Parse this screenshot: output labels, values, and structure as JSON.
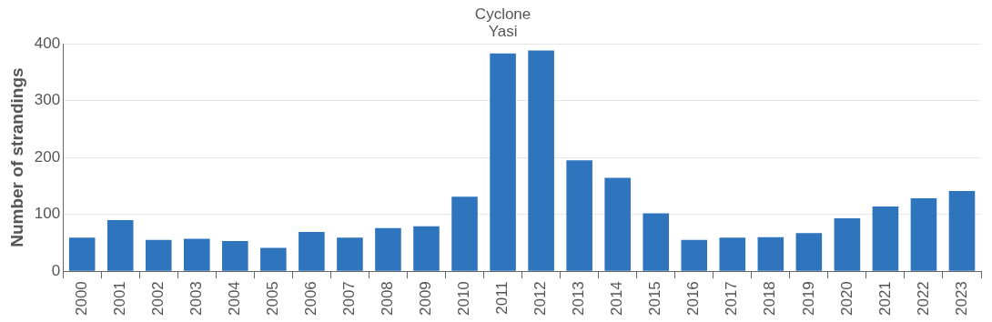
{
  "chart_data": {
    "type": "bar",
    "y_label": "Number of strandings",
    "categories": [
      "2000",
      "2001",
      "2002",
      "2003",
      "2004",
      "2005",
      "2006",
      "2007",
      "2008",
      "2009",
      "2010",
      "2011",
      "2012",
      "2013",
      "2014",
      "2015",
      "2016",
      "2017",
      "2018",
      "2019",
      "2020",
      "2021",
      "2022",
      "2023"
    ],
    "values": [
      59,
      90,
      55,
      57,
      53,
      41,
      69,
      59,
      76,
      79,
      131,
      383,
      388,
      195,
      164,
      102,
      55,
      59,
      60,
      67,
      93,
      114,
      128,
      141
    ],
    "color": "#2f75bd",
    "ylim": [
      0,
      400
    ],
    "yticks": [
      0,
      100,
      200,
      300,
      400
    ],
    "grid": true,
    "annotations": [
      {
        "category": "2011",
        "lines": [
          "Cyclone",
          "Yasi"
        ]
      }
    ]
  }
}
